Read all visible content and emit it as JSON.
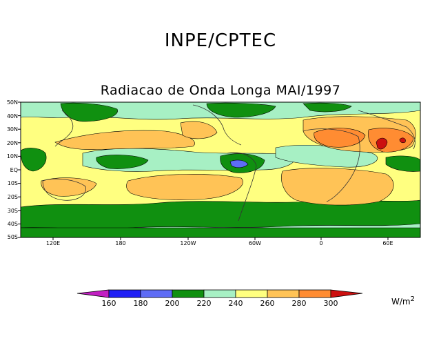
{
  "header": {
    "organization": "INPE/CPTEC",
    "map_title": "Radiacao de Onda Longa MAI/1997"
  },
  "map": {
    "lat_labels": [
      "50N",
      "40N",
      "30N",
      "20N",
      "10N",
      "EQ",
      "10S",
      "20S",
      "30S",
      "40S",
      "50S"
    ],
    "lon_labels": [
      "120E",
      "180",
      "120W",
      "60W",
      "0",
      "60E"
    ],
    "land_outline_color": "#333333"
  },
  "colorbar": {
    "labels": [
      "160",
      "180",
      "200",
      "220",
      "240",
      "260",
      "280",
      "300"
    ],
    "colors": [
      "#c21fc2",
      "#1f1ff5",
      "#5e6cf5",
      "#109010",
      "#a7f0c4",
      "#ffff80",
      "#ffc356",
      "#ff8c32",
      "#cc1010"
    ],
    "unit": "W/m",
    "unit_exponent": "2"
  }
}
